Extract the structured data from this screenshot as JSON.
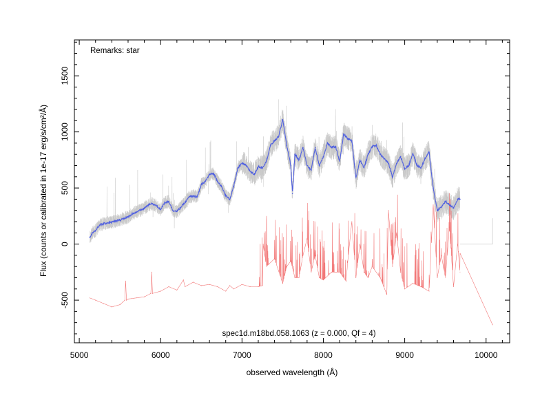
{
  "chart_data": {
    "type": "line",
    "title": "",
    "remarks": "Remarks: star",
    "caption": "spec1d.m18bd.058.1063 (z = 0.000, Qf = 4)",
    "xlabel": "observed wavelength (Å)",
    "ylabel": "Flux (counts or calibrated in 1e-17 erg/s/cm²/Å)",
    "xlim": [
      4940,
      10290
    ],
    "ylim": [
      -880,
      1820
    ],
    "x_ticks": [
      5000,
      6000,
      7000,
      8000,
      9000,
      10000
    ],
    "x_tick_labels": [
      "5000",
      "6000",
      "7000",
      "8000",
      "9000",
      "10000"
    ],
    "y_ticks": [
      -500,
      0,
      500,
      1000,
      1500
    ],
    "y_tick_labels": [
      "-500",
      "0",
      "500",
      "1000",
      "1500"
    ],
    "grid": false,
    "colors": {
      "raw": "#c8c8c8",
      "smoothed": "#5060e0",
      "model": "#f06060"
    },
    "series": [
      {
        "key": "smoothed",
        "x": [
          5130,
          5160,
          5200,
          5250,
          5300,
          5350,
          5400,
          5450,
          5500,
          5550,
          5600,
          5650,
          5700,
          5750,
          5800,
          5850,
          5900,
          5950,
          6000,
          6050,
          6100,
          6150,
          6200,
          6250,
          6300,
          6350,
          6400,
          6450,
          6500,
          6550,
          6600,
          6650,
          6700,
          6750,
          6800,
          6850,
          6900,
          6950,
          7000,
          7050,
          7100,
          7150,
          7200,
          7250,
          7300,
          7350,
          7400,
          7450,
          7500,
          7550,
          7600,
          7620,
          7650,
          7700,
          7750,
          7800,
          7850,
          7900,
          7950,
          8000,
          8050,
          8100,
          8150,
          8200,
          8250,
          8300,
          8350,
          8400,
          8450,
          8500,
          8550,
          8600,
          8650,
          8700,
          8750,
          8800,
          8850,
          8900,
          8950,
          9000,
          9050,
          9100,
          9150,
          9200,
          9250,
          9300,
          9350,
          9400,
          9450,
          9500,
          9550,
          9600,
          9650,
          9680
        ],
        "y": [
          60,
          100,
          120,
          170,
          180,
          190,
          195,
          205,
          215,
          230,
          240,
          270,
          285,
          300,
          320,
          350,
          360,
          340,
          310,
          370,
          380,
          300,
          290,
          330,
          370,
          420,
          430,
          420,
          530,
          560,
          620,
          630,
          560,
          510,
          430,
          400,
          520,
          680,
          720,
          700,
          650,
          620,
          690,
          680,
          740,
          880,
          920,
          960,
          1110,
          880,
          700,
          450,
          800,
          750,
          860,
          700,
          660,
          860,
          700,
          780,
          900,
          860,
          870,
          740,
          980,
          940,
          920,
          590,
          750,
          680,
          800,
          870,
          880,
          800,
          760,
          720,
          600,
          720,
          780,
          670,
          700,
          810,
          700,
          680,
          760,
          820,
          500,
          300,
          330,
          380,
          350,
          320,
          400,
          400
        ]
      },
      {
        "key": "model",
        "x": [
          5130,
          5200,
          5300,
          5400,
          5500,
          5560,
          5570,
          5580,
          5600,
          5700,
          5800,
          5880,
          5890,
          5900,
          6000,
          6100,
          6200,
          6280,
          6300,
          6400,
          6500,
          6600,
          6700,
          6800,
          6850,
          6900,
          7000,
          7100,
          7200,
          7250,
          7260,
          7300,
          7400,
          7500,
          7550,
          7600,
          7650,
          7700,
          7750,
          7800,
          7850,
          7900,
          7950,
          8000,
          8100,
          8200,
          8280,
          8300,
          8350,
          8400,
          8450,
          8500,
          8550,
          8600,
          8700,
          8780,
          8800,
          8850,
          8900,
          8950,
          9000,
          9100,
          9200,
          9300,
          9350,
          9400,
          9450,
          9500,
          9550,
          9600,
          9650,
          9680,
          10080
        ],
        "y": [
          -480,
          -500,
          -530,
          -560,
          -540,
          -500,
          -330,
          -500,
          -490,
          -480,
          -470,
          -440,
          -250,
          -440,
          -420,
          -380,
          -410,
          -320,
          -380,
          -340,
          -370,
          -360,
          -380,
          -420,
          -370,
          -400,
          -360,
          -380,
          -380,
          -370,
          0,
          -200,
          -130,
          -350,
          -200,
          -150,
          -300,
          -300,
          -100,
          50,
          -250,
          -100,
          -300,
          -320,
          -250,
          -250,
          -330,
          -150,
          200,
          -300,
          0,
          -250,
          -300,
          -200,
          -300,
          -450,
          300,
          -200,
          100,
          -250,
          -400,
          -350,
          -380,
          -420,
          350,
          -300,
          -100,
          -300,
          150,
          -380,
          0,
          -250,
          -720
        ]
      }
    ]
  }
}
